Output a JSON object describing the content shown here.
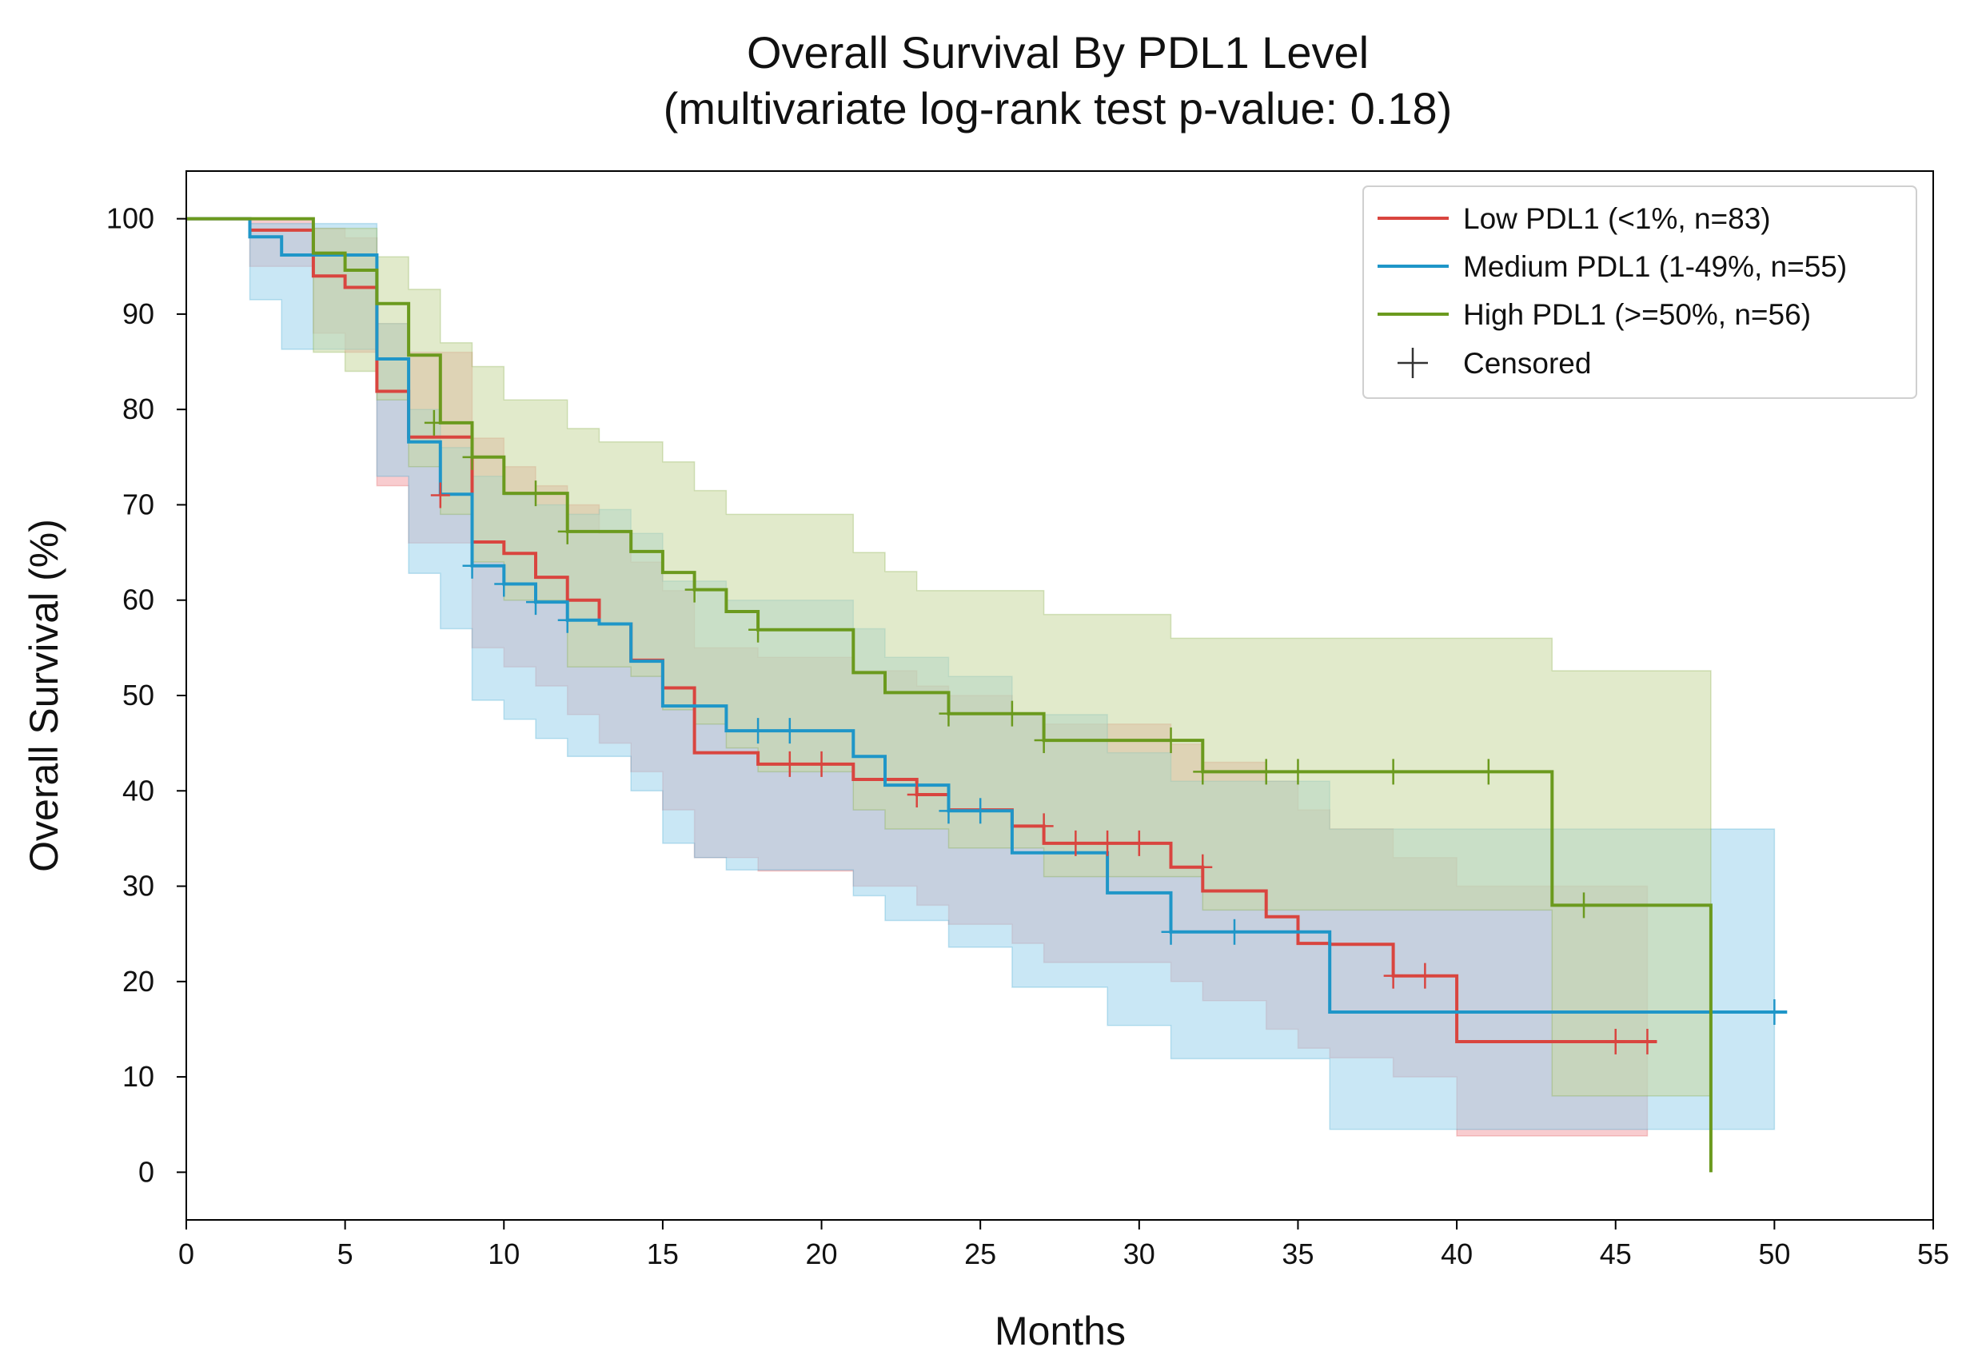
{
  "chart_data": {
    "type": "line",
    "subtype": "kaplan-meier",
    "title": "Overall Survival By PDL1 Level",
    "subtitle": "(multivariate log-rank test p-value: 0.18)",
    "xlabel": "Months",
    "ylabel": "Overall Survival (%)",
    "xlim": [
      0,
      55
    ],
    "ylim": [
      -5,
      105
    ],
    "xticks": [
      0,
      5,
      10,
      15,
      20,
      25,
      30,
      35,
      40,
      45,
      50,
      55
    ],
    "yticks": [
      0,
      10,
      20,
      30,
      40,
      50,
      60,
      70,
      80,
      90,
      100
    ],
    "grid": false,
    "legend_position": "top-right",
    "censored_label": "Censored",
    "series": [
      {
        "name": "Low PDL1 (<1%, n=83)",
        "color": "#d9453f",
        "ci_color": "#f2a3a8",
        "steps": [
          [
            0,
            100
          ],
          [
            2,
            98.8
          ],
          [
            4,
            94
          ],
          [
            5,
            92.8
          ],
          [
            6,
            81.9
          ],
          [
            7,
            77.1
          ],
          [
            9,
            66.1
          ],
          [
            10,
            64.9
          ],
          [
            11,
            62.4
          ],
          [
            12,
            60
          ],
          [
            13,
            57.5
          ],
          [
            14,
            53.7
          ],
          [
            15,
            50.8
          ],
          [
            16,
            44
          ],
          [
            18,
            42.8
          ],
          [
            21,
            41.2
          ],
          [
            23,
            39.6
          ],
          [
            24,
            38
          ],
          [
            26,
            36.3
          ],
          [
            27,
            34.5
          ],
          [
            31,
            32
          ],
          [
            32,
            29.5
          ],
          [
            34,
            26.8
          ],
          [
            35,
            24
          ],
          [
            36,
            23.9
          ],
          [
            38,
            20.6
          ],
          [
            40,
            13.7
          ],
          [
            46.3,
            13.7
          ]
        ],
        "ci_lower": [
          [
            0,
            100
          ],
          [
            2,
            95
          ],
          [
            4,
            88
          ],
          [
            5,
            86
          ],
          [
            6,
            72
          ],
          [
            7,
            66
          ],
          [
            9,
            55
          ],
          [
            10,
            53
          ],
          [
            11,
            51
          ],
          [
            12,
            48
          ],
          [
            13,
            45
          ],
          [
            14,
            42
          ],
          [
            15,
            38
          ],
          [
            16,
            33
          ],
          [
            18,
            31.6
          ],
          [
            21,
            30
          ],
          [
            23,
            28
          ],
          [
            24,
            26
          ],
          [
            26,
            24
          ],
          [
            27,
            22
          ],
          [
            31,
            20
          ],
          [
            32,
            18
          ],
          [
            34,
            15
          ],
          [
            35,
            13
          ],
          [
            36,
            12
          ],
          [
            38,
            10
          ],
          [
            40,
            3.8
          ],
          [
            46,
            3.8
          ]
        ],
        "ci_upper": [
          [
            0,
            100
          ],
          [
            2,
            100
          ],
          [
            4,
            99
          ],
          [
            5,
            98
          ],
          [
            6,
            89
          ],
          [
            7,
            86
          ],
          [
            9,
            77
          ],
          [
            10,
            74
          ],
          [
            11,
            72
          ],
          [
            12,
            70
          ],
          [
            13,
            67
          ],
          [
            14,
            64
          ],
          [
            15,
            61
          ],
          [
            16,
            55
          ],
          [
            18,
            54
          ],
          [
            21,
            52.6
          ],
          [
            23,
            51
          ],
          [
            24,
            50
          ],
          [
            26,
            48
          ],
          [
            27,
            47
          ],
          [
            31,
            44.9
          ],
          [
            32,
            43
          ],
          [
            34,
            41
          ],
          [
            35,
            38
          ],
          [
            36,
            36
          ],
          [
            38,
            33
          ],
          [
            40,
            30
          ],
          [
            46,
            30
          ]
        ],
        "censored": [
          [
            8,
            71
          ],
          [
            19,
            42.8
          ],
          [
            20,
            42.8
          ],
          [
            23,
            39.6
          ],
          [
            27,
            36.3
          ],
          [
            28,
            34.5
          ],
          [
            29,
            34.5
          ],
          [
            30,
            34.5
          ],
          [
            32,
            32
          ],
          [
            38,
            20.6
          ],
          [
            39,
            20.6
          ],
          [
            45,
            13.7
          ],
          [
            46,
            13.7
          ]
        ]
      },
      {
        "name": "Medium PDL1 (1-49%, n=55)",
        "color": "#1f96c8",
        "ci_color": "#9cd3ec",
        "steps": [
          [
            0,
            100
          ],
          [
            2,
            98.1
          ],
          [
            3,
            96.2
          ],
          [
            6,
            85.3
          ],
          [
            7,
            76.6
          ],
          [
            8,
            71.1
          ],
          [
            9,
            63.6
          ],
          [
            10,
            61.7
          ],
          [
            11,
            59.8
          ],
          [
            12,
            57.9
          ],
          [
            13,
            57.5
          ],
          [
            14,
            53.6
          ],
          [
            15,
            48.9
          ],
          [
            17,
            46.3
          ],
          [
            21,
            43.6
          ],
          [
            22,
            40.6
          ],
          [
            24,
            37.9
          ],
          [
            26,
            33.5
          ],
          [
            29,
            29.3
          ],
          [
            31,
            25.2
          ],
          [
            36,
            16.8
          ],
          [
            50.4,
            16.8
          ]
        ],
        "ci_lower": [
          [
            0,
            100
          ],
          [
            2,
            91.5
          ],
          [
            3,
            86.3
          ],
          [
            6,
            73
          ],
          [
            7,
            62.8
          ],
          [
            8,
            57
          ],
          [
            9,
            49.5
          ],
          [
            10,
            47.5
          ],
          [
            11,
            45.5
          ],
          [
            12,
            43.6
          ],
          [
            14,
            40
          ],
          [
            15,
            34.5
          ],
          [
            16,
            33
          ],
          [
            17,
            31.7
          ],
          [
            21,
            29
          ],
          [
            22,
            26.4
          ],
          [
            24,
            23.6
          ],
          [
            26,
            19.4
          ],
          [
            29,
            15.4
          ],
          [
            31,
            11.9
          ],
          [
            36,
            4.5
          ],
          [
            50,
            4.5
          ]
        ],
        "ci_upper": [
          [
            0,
            100
          ],
          [
            2,
            99.5
          ],
          [
            6,
            89
          ],
          [
            7,
            80
          ],
          [
            8,
            76
          ],
          [
            9,
            73
          ],
          [
            10,
            71
          ],
          [
            11,
            70
          ],
          [
            12,
            69
          ],
          [
            13,
            69.5
          ],
          [
            14,
            67
          ],
          [
            15,
            62
          ],
          [
            17,
            60
          ],
          [
            21,
            57
          ],
          [
            22,
            54
          ],
          [
            24,
            52
          ],
          [
            26,
            48
          ],
          [
            29,
            44
          ],
          [
            31,
            41
          ],
          [
            36,
            36
          ],
          [
            50,
            36
          ]
        ],
        "censored": [
          [
            9,
            63.6
          ],
          [
            10,
            61.7
          ],
          [
            11,
            59.8
          ],
          [
            12,
            57.9
          ],
          [
            18,
            46.3
          ],
          [
            19,
            46.3
          ],
          [
            24,
            37.9
          ],
          [
            25,
            37.9
          ],
          [
            31,
            25.2
          ],
          [
            33,
            25.2
          ],
          [
            50,
            16.8
          ]
        ]
      },
      {
        "name": "High PDL1 (>=50%, n=56)",
        "color": "#6b9a1e",
        "ci_color": "#c9d8a0",
        "steps": [
          [
            0,
            100
          ],
          [
            4,
            96.4
          ],
          [
            5,
            94.6
          ],
          [
            6,
            91.1
          ],
          [
            7,
            85.7
          ],
          [
            8,
            78.6
          ],
          [
            9,
            75
          ],
          [
            10,
            71.2
          ],
          [
            12,
            67.2
          ],
          [
            14,
            65.1
          ],
          [
            15,
            62.9
          ],
          [
            16,
            61.1
          ],
          [
            17,
            58.8
          ],
          [
            18,
            56.9
          ],
          [
            21,
            52.4
          ],
          [
            22,
            50.3
          ],
          [
            24,
            48.1
          ],
          [
            27,
            45.3
          ],
          [
            32,
            42
          ],
          [
            43,
            28
          ],
          [
            48,
            0
          ]
        ],
        "ci_lower": [
          [
            0,
            100
          ],
          [
            4,
            86
          ],
          [
            5,
            84
          ],
          [
            6,
            81
          ],
          [
            7,
            74
          ],
          [
            8,
            69
          ],
          [
            9,
            64
          ],
          [
            10,
            60
          ],
          [
            12,
            53
          ],
          [
            14,
            52
          ],
          [
            15,
            48.5
          ],
          [
            16,
            47
          ],
          [
            17,
            44.5
          ],
          [
            18,
            42
          ],
          [
            21,
            38
          ],
          [
            22,
            36
          ],
          [
            24,
            34
          ],
          [
            27,
            31
          ],
          [
            32,
            27.5
          ],
          [
            43,
            8
          ],
          [
            48,
            0
          ]
        ],
        "ci_upper": [
          [
            0,
            100
          ],
          [
            4,
            99
          ],
          [
            6,
            96
          ],
          [
            7,
            92.6
          ],
          [
            8,
            87
          ],
          [
            9,
            84.5
          ],
          [
            10,
            81
          ],
          [
            12,
            78
          ],
          [
            13,
            76.6
          ],
          [
            15,
            74.5
          ],
          [
            16,
            71.5
          ],
          [
            17,
            69
          ],
          [
            21,
            65
          ],
          [
            22,
            63
          ],
          [
            23,
            61
          ],
          [
            27,
            58.5
          ],
          [
            31,
            56
          ],
          [
            43,
            52.6
          ],
          [
            48,
            52.6
          ]
        ],
        "censored": [
          [
            7.8,
            78.6
          ],
          [
            9,
            75
          ],
          [
            11,
            71.2
          ],
          [
            12,
            67.2
          ],
          [
            16,
            61.1
          ],
          [
            18,
            56.9
          ],
          [
            24,
            48.1
          ],
          [
            26,
            48.1
          ],
          [
            27,
            45.3
          ],
          [
            31,
            45.3
          ],
          [
            32,
            42
          ],
          [
            34,
            42
          ],
          [
            35,
            42
          ],
          [
            38,
            42
          ],
          [
            41,
            42
          ],
          [
            44,
            28
          ]
        ]
      }
    ]
  }
}
